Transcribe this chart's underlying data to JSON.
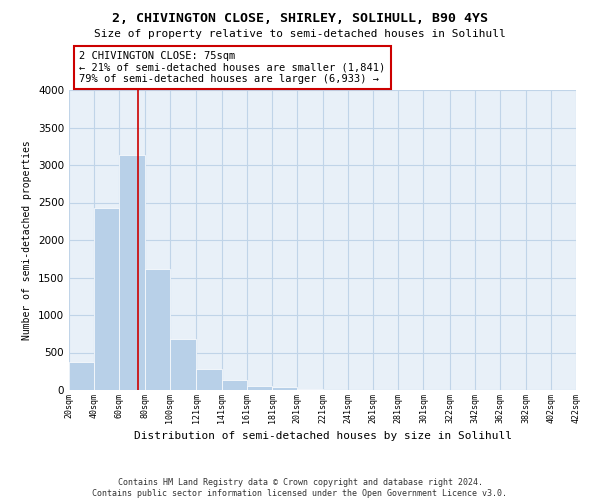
{
  "title_line1": "2, CHIVINGTON CLOSE, SHIRLEY, SOLIHULL, B90 4YS",
  "title_line2": "Size of property relative to semi-detached houses in Solihull",
  "xlabel": "Distribution of semi-detached houses by size in Solihull",
  "ylabel": "Number of semi-detached properties",
  "bar_color": "#b8d0e8",
  "grid_color": "#c0d4e8",
  "background_color": "#e8f0f8",
  "annotation_box_color": "#cc0000",
  "property_line_color": "#cc0000",
  "property_size": 75,
  "annotation_text_line1": "2 CHIVINGTON CLOSE: 75sqm",
  "annotation_text_line2": "← 21% of semi-detached houses are smaller (1,841)",
  "annotation_text_line3": "79% of semi-detached houses are larger (6,933) →",
  "footnote1": "Contains HM Land Registry data © Crown copyright and database right 2024.",
  "footnote2": "Contains public sector information licensed under the Open Government Licence v3.0.",
  "bin_edges": [
    20,
    40,
    60,
    80,
    100,
    121,
    141,
    161,
    181,
    201,
    221,
    241,
    261,
    281,
    301,
    322,
    342,
    362,
    382,
    402,
    422
  ],
  "bin_labels": [
    "20sqm",
    "40sqm",
    "60sqm",
    "80sqm",
    "100sqm",
    "121sqm",
    "141sqm",
    "161sqm",
    "181sqm",
    "201sqm",
    "221sqm",
    "241sqm",
    "261sqm",
    "281sqm",
    "301sqm",
    "322sqm",
    "342sqm",
    "362sqm",
    "382sqm",
    "402sqm",
    "422sqm"
  ],
  "bar_heights": [
    370,
    2430,
    3130,
    1620,
    680,
    280,
    130,
    60,
    40,
    10,
    5,
    0,
    0,
    0,
    0,
    0,
    0,
    0,
    0,
    0
  ],
  "ylim": [
    0,
    4000
  ],
  "yticks": [
    0,
    500,
    1000,
    1500,
    2000,
    2500,
    3000,
    3500,
    4000
  ]
}
